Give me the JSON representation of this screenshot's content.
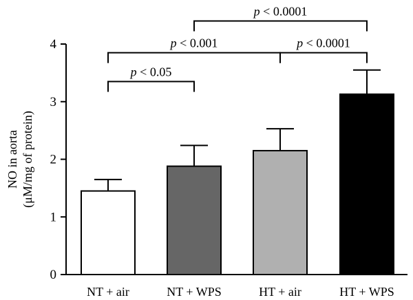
{
  "chart_data": {
    "type": "bar",
    "ylabel": [
      "NO in aorta",
      "(μM/mg of protein)"
    ],
    "ylim": [
      0,
      4
    ],
    "yticks": [
      0,
      1,
      2,
      3,
      4
    ],
    "categories": [
      "NT + air",
      "NT + WPS",
      "HT + air",
      "HT + WPS"
    ],
    "values": [
      1.45,
      1.88,
      2.15,
      3.13
    ],
    "errors": [
      0.2,
      0.36,
      0.38,
      0.42
    ],
    "colors": [
      "#ffffff",
      "#666666",
      "#b0b0b0",
      "#000000"
    ],
    "comparisons": [
      {
        "from": 0,
        "to": 1,
        "y": 3.35,
        "p": "p",
        "rest": " < 0.05"
      },
      {
        "from": 0,
        "to": 2,
        "y": 3.85,
        "p": "p",
        "rest": " < 0.001"
      },
      {
        "from": 2,
        "to": 3,
        "y": 3.85,
        "p": "p",
        "rest": " < 0.0001"
      },
      {
        "from": 1,
        "to": 3,
        "y": 4.4,
        "p": "p",
        "rest": " < 0.0001"
      }
    ]
  }
}
